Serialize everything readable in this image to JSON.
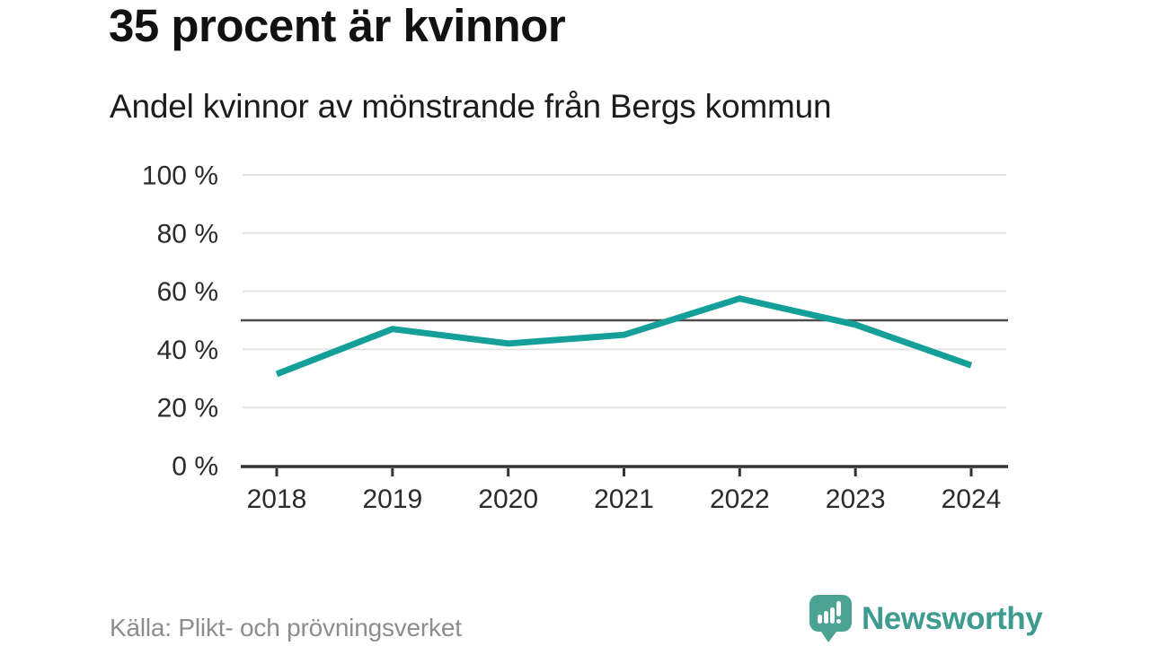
{
  "header": {
    "title": "35 procent är kvinnor",
    "subtitle": "Andel kvinnor av mönstrande från Bergs kommun"
  },
  "footer": {
    "source": "Källa: Plikt- och prövningsverket",
    "brand": "Newsworthy",
    "logo_icon": "bar-chart-speech-bubble-icon"
  },
  "colors": {
    "line": "#14a098",
    "reference_line": "#4d4d4d",
    "gridline": "#e3e3e3",
    "axis": "#333333",
    "tick_text": "#2b2b2b",
    "brand_teal": "#3d9b90",
    "logo_bubble": "#4ba394",
    "source_gray": "#8d8d8d"
  },
  "chart_data": {
    "type": "line",
    "title": "35 procent är kvinnor",
    "subtitle": "Andel kvinnor av mönstrande från Bergs kommun",
    "x": [
      2018,
      2019,
      2020,
      2021,
      2022,
      2023,
      2024
    ],
    "series": [
      {
        "name": "Andel kvinnor av mönstrande",
        "values": [
          31.5,
          47,
          42,
          45,
          57.5,
          48.5,
          34.5
        ]
      }
    ],
    "xlabel": "",
    "ylabel": "",
    "ylim": [
      0,
      100
    ],
    "yticks": [
      0,
      20,
      40,
      60,
      80,
      100
    ],
    "ytick_format": "{v} %",
    "reference_line": 50,
    "grid": "horizontal",
    "legend": "none",
    "line_color": "#14a098"
  }
}
